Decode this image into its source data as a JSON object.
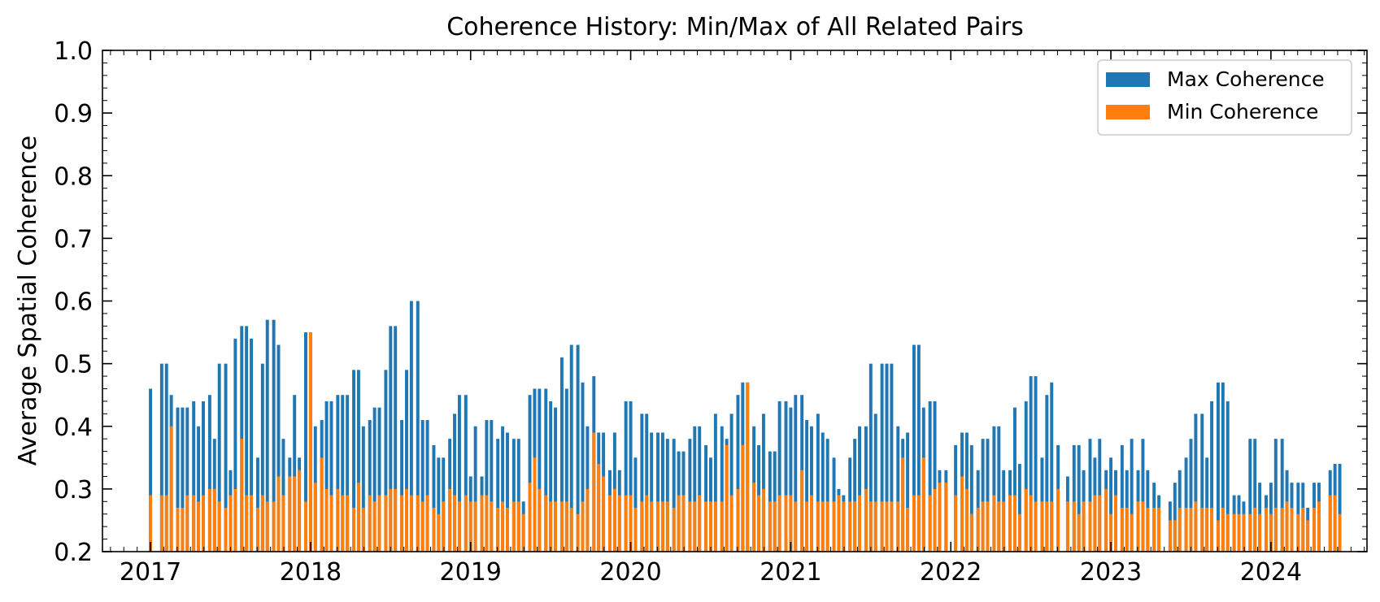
{
  "chart_data": {
    "type": "bar",
    "title": "Coherence History: Min/Max of All Related Pairs",
    "xlabel": "",
    "ylabel": "Average Spatial Coherence",
    "xlim": [
      2016.7,
      2024.6
    ],
    "ylim": [
      0.2,
      1.0
    ],
    "x_ticks": [
      "2017",
      "2018",
      "2019",
      "2020",
      "2021",
      "2022",
      "2023",
      "2024"
    ],
    "y_ticks": [
      "0.2",
      "0.3",
      "0.4",
      "0.5",
      "0.6",
      "0.7",
      "0.8",
      "0.9",
      "1.0"
    ],
    "grid": false,
    "legend_position": "top-right",
    "bar_width_years": 0.02,
    "series": [
      {
        "name": "Max Coherence",
        "color": "#1f77b4",
        "key": "max"
      },
      {
        "name": "Min Coherence",
        "color": "#ff7f0e",
        "key": "min"
      }
    ],
    "x": [
      2017.0,
      2017.07,
      2017.1,
      2017.13,
      2017.17,
      2017.2,
      2017.23,
      2017.27,
      2017.3,
      2017.33,
      2017.37,
      2017.4,
      2017.43,
      2017.47,
      2017.5,
      2017.53,
      2017.57,
      2017.6,
      2017.63,
      2017.67,
      2017.7,
      2017.73,
      2017.77,
      2017.8,
      2017.83,
      2017.87,
      2017.9,
      2017.93,
      2017.97,
      2018.0,
      2018.03,
      2018.07,
      2018.1,
      2018.13,
      2018.17,
      2018.2,
      2018.23,
      2018.27,
      2018.3,
      2018.33,
      2018.37,
      2018.4,
      2018.43,
      2018.47,
      2018.5,
      2018.53,
      2018.57,
      2018.6,
      2018.63,
      2018.67,
      2018.7,
      2018.73,
      2018.77,
      2018.8,
      2018.83,
      2018.87,
      2018.9,
      2018.93,
      2018.97,
      2019.0,
      2019.03,
      2019.07,
      2019.1,
      2019.13,
      2019.17,
      2019.2,
      2019.23,
      2019.27,
      2019.3,
      2019.33,
      2019.37,
      2019.4,
      2019.43,
      2019.47,
      2019.5,
      2019.53,
      2019.57,
      2019.6,
      2019.63,
      2019.67,
      2019.7,
      2019.73,
      2019.77,
      2019.8,
      2019.83,
      2019.87,
      2019.9,
      2019.93,
      2019.97,
      2020.0,
      2020.03,
      2020.07,
      2020.1,
      2020.13,
      2020.17,
      2020.2,
      2020.23,
      2020.27,
      2020.3,
      2020.33,
      2020.37,
      2020.4,
      2020.43,
      2020.47,
      2020.5,
      2020.53,
      2020.57,
      2020.6,
      2020.63,
      2020.67,
      2020.7,
      2020.73,
      2020.77,
      2020.8,
      2020.83,
      2020.87,
      2020.9,
      2020.93,
      2020.97,
      2021.0,
      2021.03,
      2021.07,
      2021.1,
      2021.13,
      2021.17,
      2021.2,
      2021.23,
      2021.27,
      2021.3,
      2021.33,
      2021.37,
      2021.4,
      2021.43,
      2021.47,
      2021.5,
      2021.53,
      2021.57,
      2021.6,
      2021.63,
      2021.67,
      2021.7,
      2021.73,
      2021.77,
      2021.8,
      2021.83,
      2021.87,
      2021.9,
      2021.93,
      2021.97,
      2022.03,
      2022.07,
      2022.1,
      2022.13,
      2022.17,
      2022.2,
      2022.23,
      2022.27,
      2022.3,
      2022.33,
      2022.37,
      2022.4,
      2022.43,
      2022.47,
      2022.5,
      2022.53,
      2022.57,
      2022.6,
      2022.63,
      2022.67,
      2022.73,
      2022.77,
      2022.8,
      2022.83,
      2022.87,
      2022.9,
      2022.93,
      2022.97,
      2023.0,
      2023.03,
      2023.07,
      2023.1,
      2023.13,
      2023.17,
      2023.2,
      2023.23,
      2023.27,
      2023.3,
      2023.37,
      2023.4,
      2023.43,
      2023.47,
      2023.5,
      2023.53,
      2023.57,
      2023.6,
      2023.63,
      2023.67,
      2023.7,
      2023.73,
      2023.77,
      2023.8,
      2023.83,
      2023.87,
      2023.9,
      2023.93,
      2023.97,
      2024.0,
      2024.03,
      2024.07,
      2024.1,
      2024.13,
      2024.17,
      2024.2,
      2024.23,
      2024.27,
      2024.3,
      2024.37,
      2024.4,
      2024.43,
      2024.47
    ],
    "max": [
      0.46,
      0.5,
      0.5,
      0.45,
      0.43,
      0.43,
      0.43,
      0.44,
      0.4,
      0.44,
      0.45,
      0.38,
      0.5,
      0.5,
      0.33,
      0.54,
      0.56,
      0.56,
      0.54,
      0.35,
      0.5,
      0.57,
      0.57,
      0.53,
      0.38,
      0.35,
      0.45,
      0.35,
      0.55,
      0.55,
      0.4,
      0.41,
      0.44,
      0.44,
      0.45,
      0.45,
      0.45,
      0.49,
      0.49,
      0.4,
      0.41,
      0.43,
      0.43,
      0.49,
      0.56,
      0.56,
      0.41,
      0.49,
      0.6,
      0.6,
      0.41,
      0.41,
      0.37,
      0.35,
      0.35,
      0.38,
      0.42,
      0.45,
      0.45,
      0.32,
      0.4,
      0.32,
      0.41,
      0.41,
      0.38,
      0.4,
      0.39,
      0.38,
      0.38,
      0.28,
      0.45,
      0.46,
      0.46,
      0.46,
      0.44,
      0.43,
      0.51,
      0.46,
      0.53,
      0.53,
      0.47,
      0.4,
      0.48,
      0.39,
      0.39,
      0.33,
      0.39,
      0.33,
      0.44,
      0.44,
      0.35,
      0.42,
      0.42,
      0.39,
      0.39,
      0.39,
      0.38,
      0.38,
      0.36,
      0.36,
      0.38,
      0.4,
      0.4,
      0.37,
      0.35,
      0.42,
      0.4,
      0.38,
      0.42,
      0.45,
      0.47,
      0.47,
      0.4,
      0.37,
      0.42,
      0.36,
      0.36,
      0.44,
      0.44,
      0.43,
      0.45,
      0.45,
      0.41,
      0.4,
      0.42,
      0.39,
      0.38,
      0.35,
      0.3,
      0.29,
      0.35,
      0.38,
      0.4,
      0.4,
      0.5,
      0.42,
      0.5,
      0.5,
      0.5,
      0.4,
      0.38,
      0.39,
      0.53,
      0.53,
      0.43,
      0.44,
      0.44,
      0.33,
      0.33,
      0.37,
      0.39,
      0.39,
      0.37,
      0.33,
      0.38,
      0.38,
      0.4,
      0.4,
      0.33,
      0.33,
      0.43,
      0.34,
      0.44,
      0.48,
      0.48,
      0.35,
      0.45,
      0.47,
      0.37,
      0.32,
      0.37,
      0.37,
      0.33,
      0.38,
      0.35,
      0.38,
      0.33,
      0.35,
      0.33,
      0.37,
      0.33,
      0.38,
      0.33,
      0.38,
      0.33,
      0.31,
      0.29,
      0.28,
      0.31,
      0.33,
      0.35,
      0.38,
      0.42,
      0.42,
      0.35,
      0.44,
      0.47,
      0.47,
      0.44,
      0.29,
      0.29,
      0.28,
      0.38,
      0.38,
      0.31,
      0.29,
      0.31,
      0.38,
      0.38,
      0.33,
      0.31,
      0.31,
      0.31,
      0.27,
      0.31,
      0.31,
      0.33,
      0.34,
      0.34
    ],
    "min": [
      0.29,
      0.29,
      0.29,
      0.4,
      0.27,
      0.27,
      0.29,
      0.29,
      0.28,
      0.29,
      0.3,
      0.3,
      0.28,
      0.27,
      0.29,
      0.3,
      0.38,
      0.29,
      0.29,
      0.27,
      0.29,
      0.28,
      0.28,
      0.32,
      0.29,
      0.32,
      0.32,
      0.33,
      0.28,
      0.55,
      0.31,
      0.35,
      0.3,
      0.29,
      0.3,
      0.29,
      0.29,
      0.27,
      0.31,
      0.27,
      0.29,
      0.28,
      0.29,
      0.29,
      0.3,
      0.3,
      0.29,
      0.3,
      0.29,
      0.29,
      0.28,
      0.29,
      0.27,
      0.26,
      0.28,
      0.3,
      0.29,
      0.28,
      0.29,
      0.28,
      0.28,
      0.29,
      0.29,
      0.28,
      0.27,
      0.28,
      0.27,
      0.28,
      0.28,
      0.26,
      0.31,
      0.35,
      0.3,
      0.29,
      0.28,
      0.28,
      0.28,
      0.28,
      0.27,
      0.26,
      0.28,
      0.3,
      0.39,
      0.34,
      0.32,
      0.29,
      0.3,
      0.29,
      0.29,
      0.29,
      0.27,
      0.28,
      0.29,
      0.28,
      0.28,
      0.28,
      0.28,
      0.27,
      0.29,
      0.29,
      0.28,
      0.28,
      0.29,
      0.28,
      0.28,
      0.28,
      0.28,
      0.37,
      0.29,
      0.3,
      0.37,
      0.47,
      0.31,
      0.29,
      0.3,
      0.28,
      0.28,
      0.29,
      0.29,
      0.29,
      0.28,
      0.33,
      0.28,
      0.29,
      0.28,
      0.28,
      0.28,
      0.28,
      0.29,
      0.28,
      0.28,
      0.28,
      0.29,
      0.3,
      0.28,
      0.28,
      0.28,
      0.28,
      0.28,
      0.28,
      0.35,
      0.27,
      0.29,
      0.29,
      0.35,
      0.29,
      0.3,
      0.31,
      0.31,
      0.29,
      0.32,
      0.3,
      0.26,
      0.27,
      0.28,
      0.28,
      0.29,
      0.28,
      0.28,
      0.29,
      0.29,
      0.26,
      0.3,
      0.29,
      0.28,
      0.28,
      0.28,
      0.28,
      0.3,
      0.28,
      0.28,
      0.26,
      0.28,
      0.28,
      0.29,
      0.29,
      0.3,
      0.26,
      0.29,
      0.27,
      0.27,
      0.26,
      0.28,
      0.28,
      0.27,
      0.27,
      0.27,
      0.25,
      0.25,
      0.27,
      0.27,
      0.27,
      0.28,
      0.27,
      0.27,
      0.27,
      0.25,
      0.27,
      0.26,
      0.26,
      0.26,
      0.26,
      0.26,
      0.27,
      0.26,
      0.27,
      0.26,
      0.27,
      0.27,
      0.28,
      0.27,
      0.26,
      0.27,
      0.25,
      0.27,
      0.28,
      0.29,
      0.29,
      0.26
    ]
  }
}
